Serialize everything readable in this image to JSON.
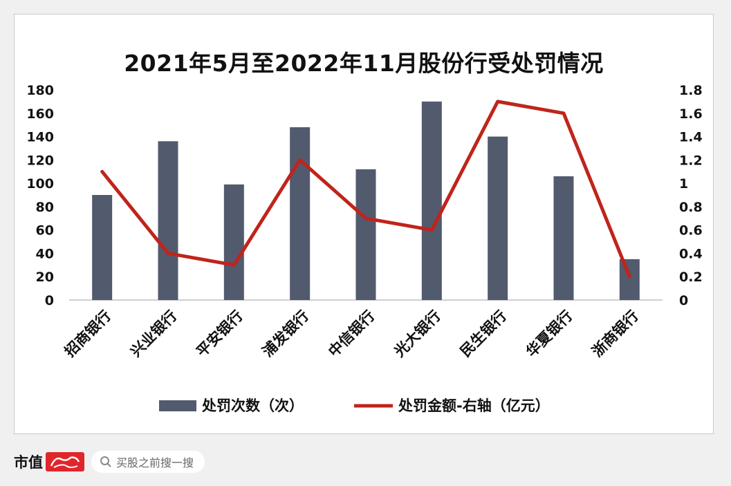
{
  "chart_data": {
    "type": "bar+line",
    "title": "2021年5月至2022年11月股份行受处罚情况",
    "categories": [
      "招商银行",
      "兴业银行",
      "平安银行",
      "浦发银行",
      "中信银行",
      "光大银行",
      "民生银行",
      "华夏银行",
      "浙商银行"
    ],
    "series": [
      {
        "name": "处罚次数（次）",
        "type": "bar",
        "axis": "left",
        "color": "#525a6e",
        "values": [
          90,
          136,
          99,
          148,
          112,
          170,
          140,
          106,
          35
        ]
      },
      {
        "name": "处罚金额-右轴（亿元）",
        "type": "line",
        "axis": "right",
        "color": "#c0241b",
        "values": [
          1.1,
          0.4,
          0.3,
          1.2,
          0.7,
          0.6,
          1.7,
          1.6,
          0.2
        ]
      }
    ],
    "y_left": {
      "min": 0,
      "max": 180,
      "ticks": [
        "0",
        "20",
        "40",
        "60",
        "80",
        "100",
        "120",
        "140",
        "160",
        "180"
      ]
    },
    "y_right": {
      "min": 0,
      "max": 1.8,
      "ticks": [
        "0",
        "0.2",
        "0.4",
        "0.6",
        "0.8",
        "1",
        "1.2",
        "1.4",
        "1.6",
        "1.8"
      ]
    },
    "grid": false,
    "legend": "bottom-center"
  },
  "footer": {
    "brand": "市值",
    "logo_icon": "shifeng-logo",
    "search_icon": "search-icon",
    "search_placeholder": "买股之前搜一搜"
  }
}
